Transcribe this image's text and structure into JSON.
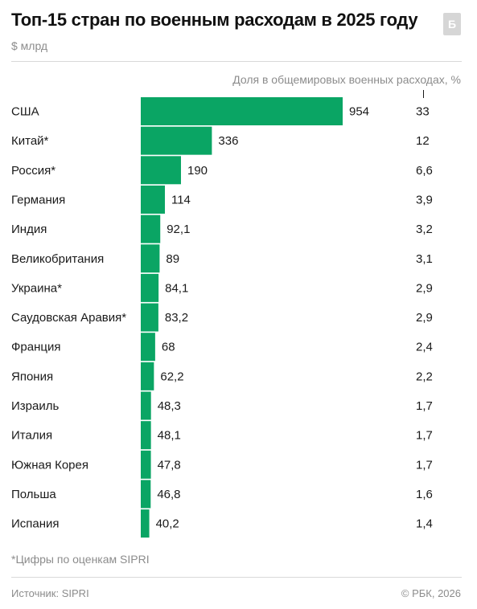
{
  "header": {
    "title": "Топ-15 стран по военным расходам в 2025 году",
    "subtitle": "$ млрд",
    "logo_text": "Б"
  },
  "share_header": "Доля в общемировых военных расходах, %",
  "chart_data": {
    "type": "bar",
    "orientation": "horizontal",
    "title": "Топ-15 стран по военным расходам в 2025 году",
    "unit": "$ млрд",
    "categories": [
      "США",
      "Китай*",
      "Россия*",
      "Германия",
      "Индия",
      "Великобритания",
      "Украина*",
      "Саудовская Аравия*",
      "Франция",
      "Япония",
      "Израиль",
      "Италия",
      "Южная Корея",
      "Польша",
      "Испания"
    ],
    "values": [
      954,
      336,
      190,
      114,
      92.1,
      89,
      84.1,
      83.2,
      68,
      62.2,
      48.3,
      48.1,
      47.8,
      46.8,
      40.2
    ],
    "value_labels": [
      "954",
      "336",
      "190",
      "114",
      "92,1",
      "89",
      "84,1",
      "83,2",
      "68",
      "62,2",
      "48,3",
      "48,1",
      "47,8",
      "46,8",
      "40,2"
    ],
    "share_labels": [
      "33",
      "12",
      "6,6",
      "3,9",
      "3,2",
      "3,1",
      "2,9",
      "2,9",
      "2,4",
      "2,2",
      "1,7",
      "1,7",
      "1,7",
      "1,6",
      "1,4"
    ],
    "xlim": [
      0,
      954
    ],
    "bar_color": "#0aa564",
    "grid": false,
    "legend": "none"
  },
  "footnote": "*Цифры по оценкам SIPRI",
  "footer": {
    "source": "Источник: SIPRI",
    "copyright": "© РБК, 2026"
  }
}
